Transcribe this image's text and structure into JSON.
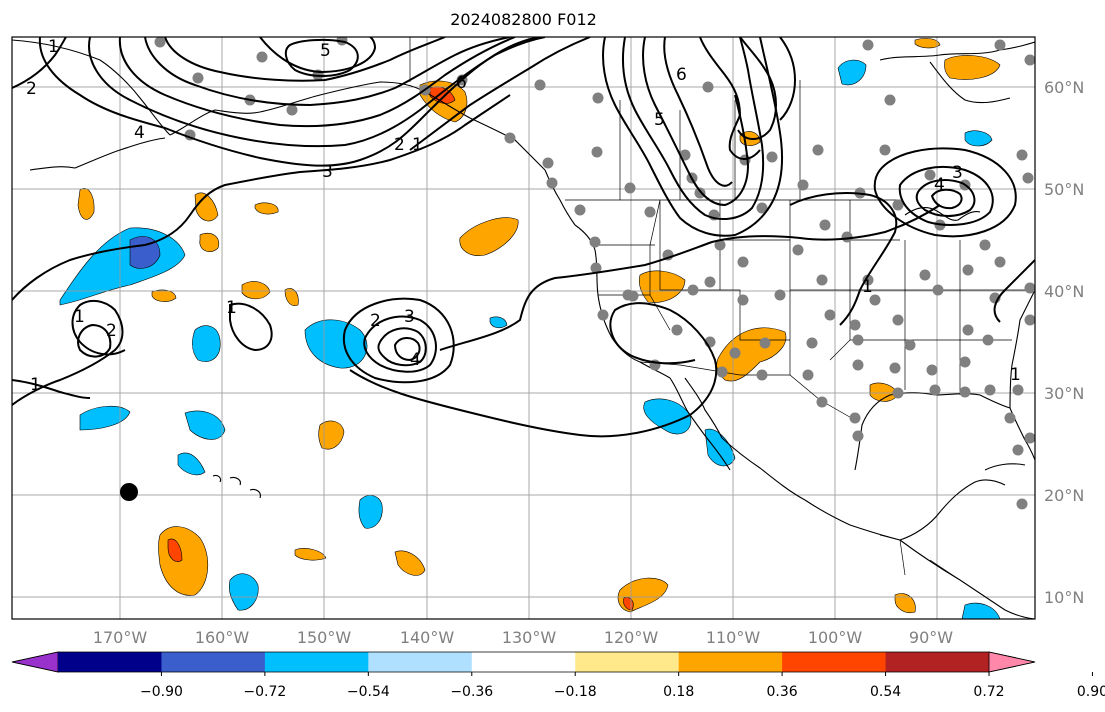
{
  "title": "2024082800 F012",
  "lat_labels": [
    "60°N",
    "50°N",
    "40°N",
    "30°N",
    "20°N",
    "10°N"
  ],
  "lon_labels": [
    "170°W",
    "160°W",
    "150°W",
    "140°W",
    "130°W",
    "120°W",
    "110°W",
    "100°W",
    "90°W"
  ],
  "colorbar": {
    "ticks": [
      "−0.90",
      "−0.72",
      "−0.54",
      "−0.36",
      "−0.18",
      "0.18",
      "0.36",
      "0.54",
      "0.72",
      "0.90"
    ],
    "colors": [
      "#9932CC",
      "#00008B",
      "#3A5FCD",
      "#00BFFF",
      "#B0E0FF",
      "#FFFFFF",
      "#FFE98A",
      "#FFA500",
      "#FF4500",
      "#B22222",
      "#FF88AA"
    ]
  },
  "contour_labels": [
    {
      "text": "2"
    },
    {
      "text": "1"
    },
    {
      "text": "4"
    },
    {
      "text": "5"
    },
    {
      "text": "3"
    },
    {
      "text": "2"
    },
    {
      "text": "1"
    },
    {
      "text": "6"
    },
    {
      "text": "5"
    },
    {
      "text": "6"
    },
    {
      "text": "3"
    },
    {
      "text": "4"
    },
    {
      "text": "1"
    },
    {
      "text": "1"
    },
    {
      "text": "2"
    },
    {
      "text": "1"
    },
    {
      "text": "2"
    },
    {
      "text": "3"
    },
    {
      "text": "4"
    },
    {
      "text": "1"
    },
    {
      "text": "1"
    }
  ]
}
